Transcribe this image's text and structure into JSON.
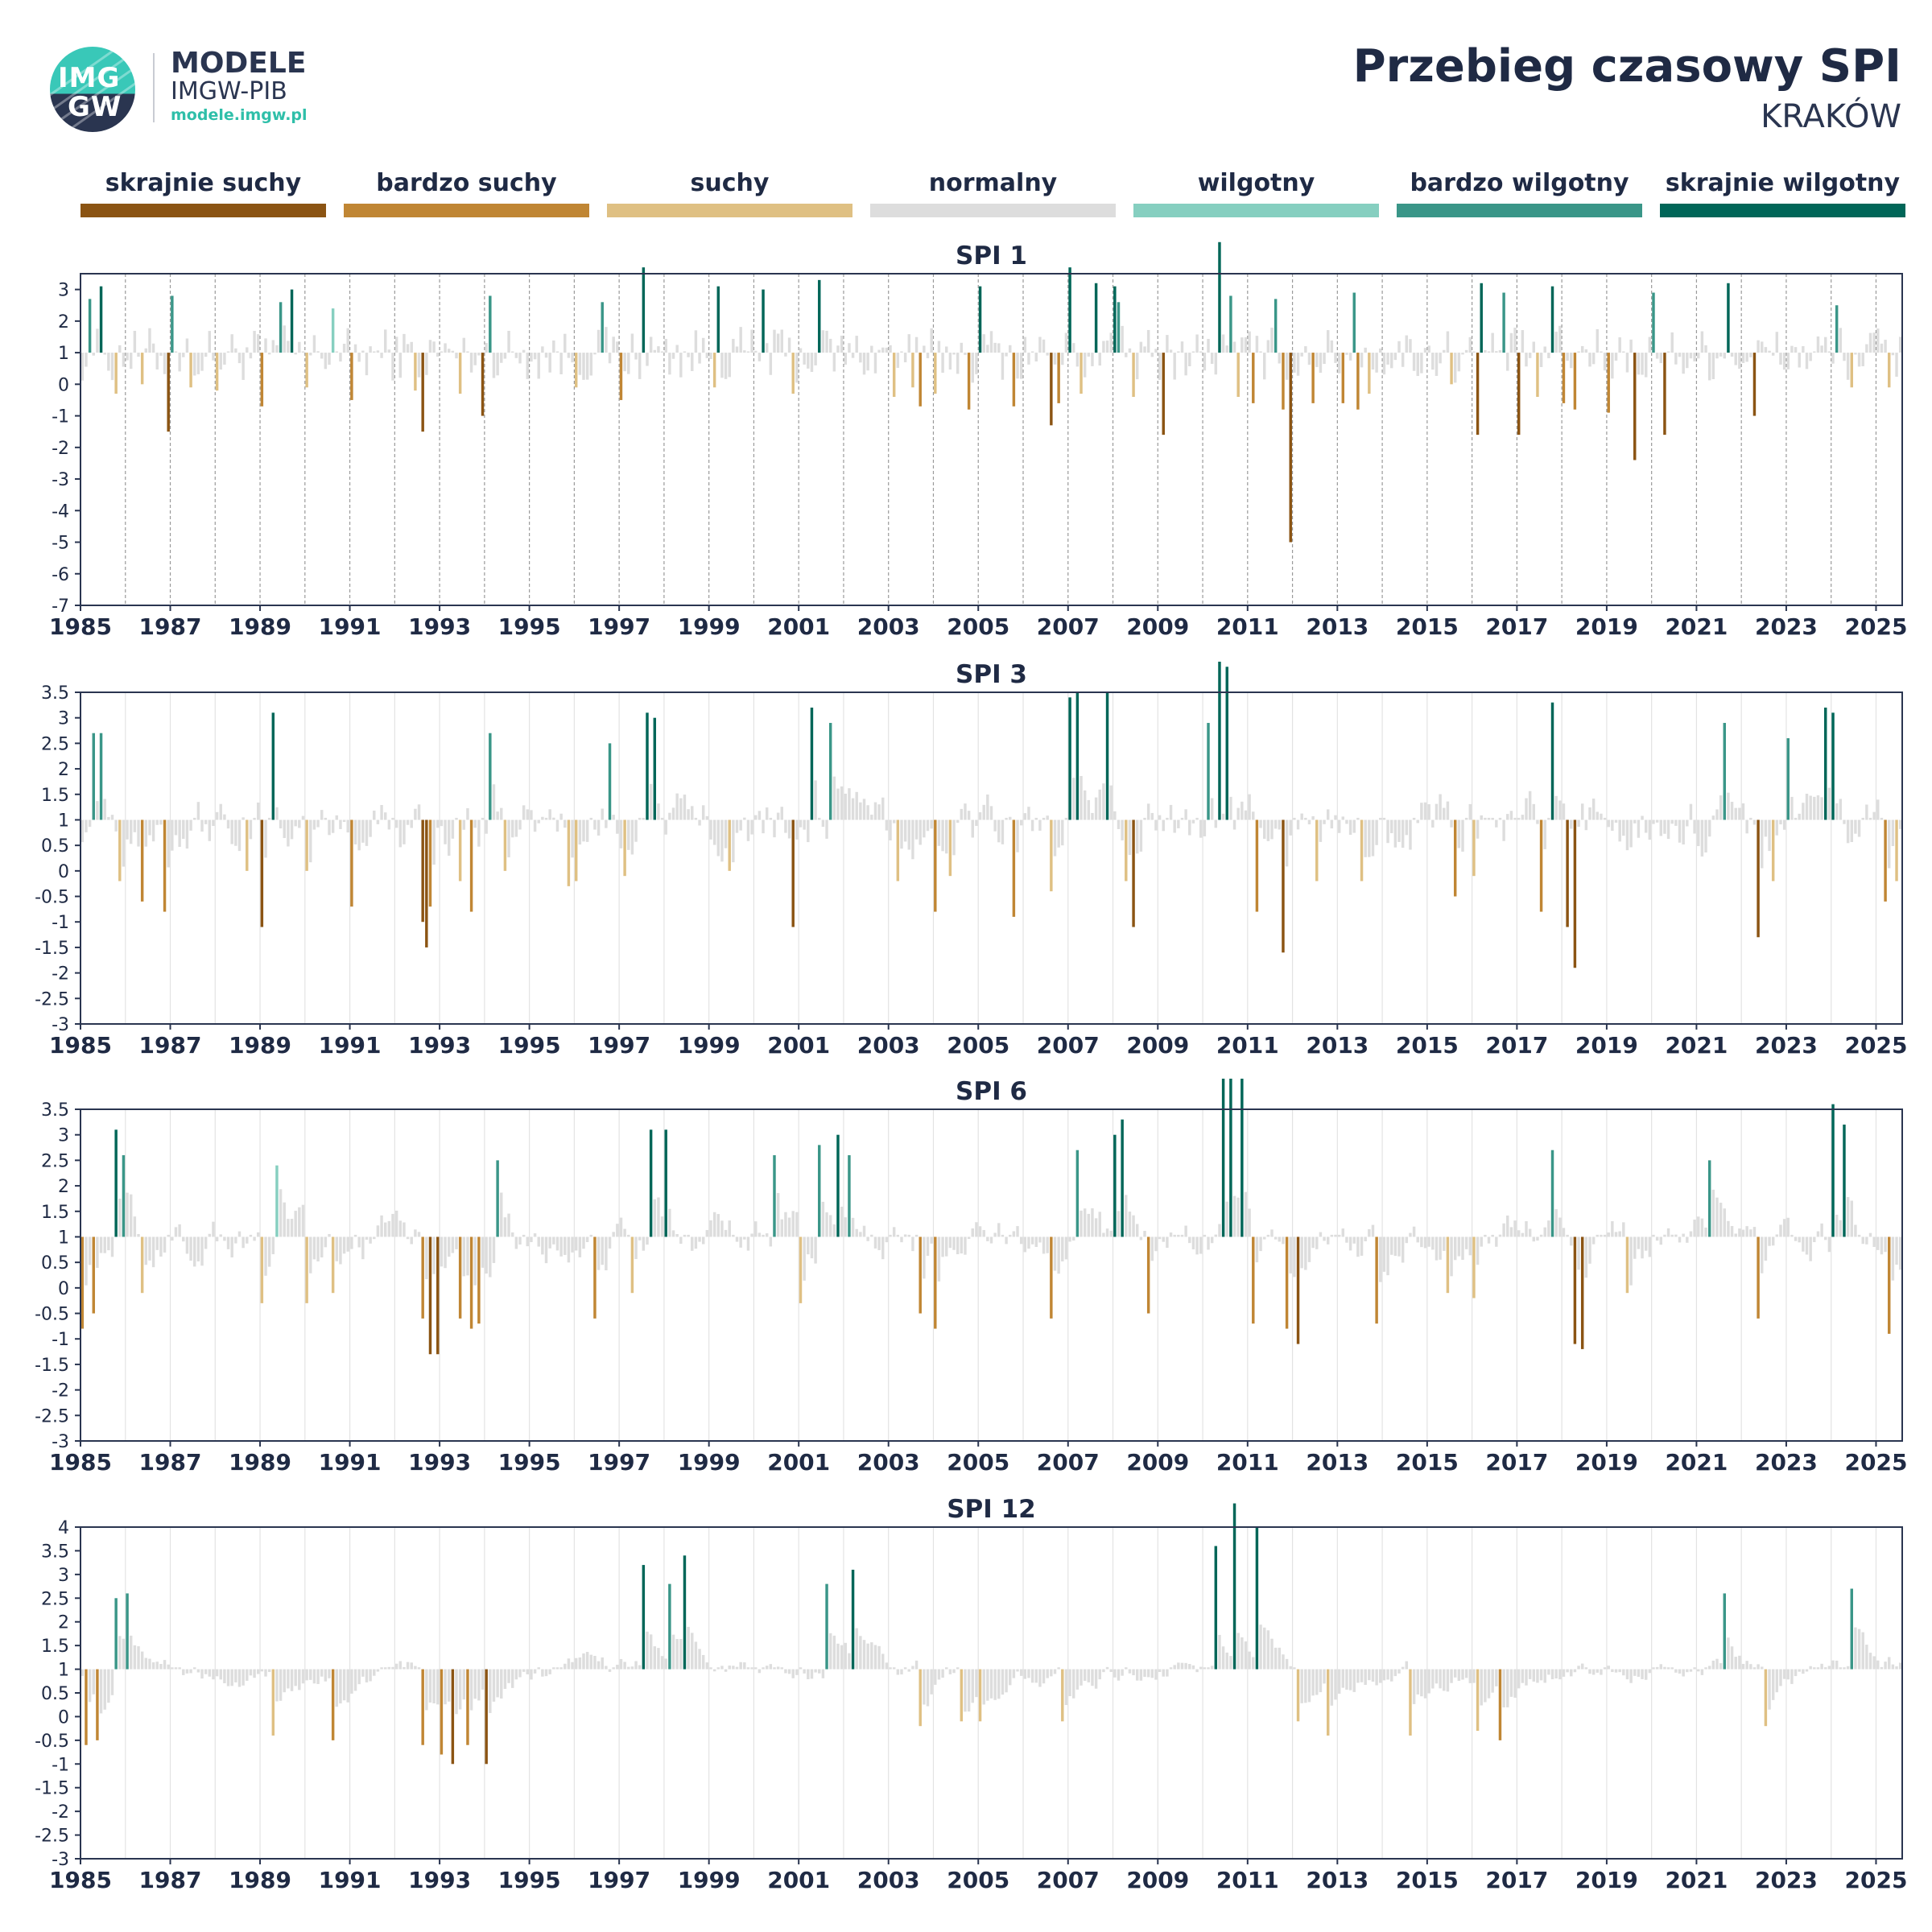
{
  "header": {
    "logo_text_top": "IMG",
    "logo_text_bottom": "GW",
    "brand_line1": "MODELE",
    "brand_line2": "IMGW-PIB",
    "brand_url": "modele.imgw.pl",
    "title": "Przebieg czasowy SPI",
    "subtitle": "KRAKÓW"
  },
  "legend": [
    {
      "label": "skrajnie suchy",
      "color": "#8B5413"
    },
    {
      "label": "bardzo suchy",
      "color": "#C08634"
    },
    {
      "label": "suchy",
      "color": "#DFC083"
    },
    {
      "label": "normalny",
      "color": "#DDDDDD"
    },
    {
      "label": "wilgotny",
      "color": "#86CFC0"
    },
    {
      "label": "bardzo wilgotny",
      "color": "#3A9688"
    },
    {
      "label": "skrajnie wilgotny",
      "color": "#006658"
    }
  ],
  "chart_data": [
    {
      "type": "bar",
      "title": "SPI 1",
      "x_start": "1985-01",
      "x_end": "2025-07",
      "baseline": 1,
      "ylim": [
        -7,
        3.5
      ],
      "yticks": [
        "3",
        "2",
        "1",
        "0",
        "-1",
        "-2",
        "-3",
        "-4",
        "-5",
        "-6",
        "-7"
      ],
      "xticks": [
        "1985",
        "1987",
        "1989",
        "1991",
        "1993",
        "1995",
        "1997",
        "1999",
        "2001",
        "2003",
        "2005",
        "2007",
        "2009",
        "2011",
        "2013",
        "2015",
        "2017",
        "2019",
        "2021",
        "2023",
        "2025"
      ],
      "gridlines": "dashed-yearly",
      "events": [
        {
          "t": "1985-03",
          "v": 1.7
        },
        {
          "t": "1985-06",
          "v": 2.1
        },
        {
          "t": "1985-10",
          "v": -1.3
        },
        {
          "t": "1986-05",
          "v": -1.0
        },
        {
          "t": "1986-12",
          "v": -2.5
        },
        {
          "t": "1987-01",
          "v": 1.8
        },
        {
          "t": "1987-06",
          "v": -1.1
        },
        {
          "t": "1988-01",
          "v": -1.2
        },
        {
          "t": "1989-01",
          "v": -1.7
        },
        {
          "t": "1989-06",
          "v": 1.6
        },
        {
          "t": "1989-09",
          "v": 2.0
        },
        {
          "t": "1990-01",
          "v": -1.1
        },
        {
          "t": "1990-08",
          "v": 1.4
        },
        {
          "t": "1991-01",
          "v": -1.5
        },
        {
          "t": "1992-06",
          "v": -1.2
        },
        {
          "t": "1992-08",
          "v": -2.5
        },
        {
          "t": "1993-06",
          "v": -1.3
        },
        {
          "t": "1993-12",
          "v": -2.0
        },
        {
          "t": "1994-02",
          "v": 1.8
        },
        {
          "t": "1996-01",
          "v": -1.1
        },
        {
          "t": "1996-08",
          "v": 1.6
        },
        {
          "t": "1997-01",
          "v": -1.5
        },
        {
          "t": "1997-07",
          "v": 2.7
        },
        {
          "t": "1999-02",
          "v": -1.1
        },
        {
          "t": "1999-03",
          "v": 2.1
        },
        {
          "t": "2000-03",
          "v": 2.0
        },
        {
          "t": "2000-11",
          "v": -1.3
        },
        {
          "t": "2001-06",
          "v": 2.3
        },
        {
          "t": "2003-02",
          "v": -1.4
        },
        {
          "t": "2003-07",
          "v": -1.1
        },
        {
          "t": "2003-09",
          "v": -1.7
        },
        {
          "t": "2004-01",
          "v": -1.3
        },
        {
          "t": "2004-10",
          "v": -1.8
        },
        {
          "t": "2005-01",
          "v": 2.1
        },
        {
          "t": "2005-10",
          "v": -1.7
        },
        {
          "t": "2006-08",
          "v": -2.3
        },
        {
          "t": "2006-10",
          "v": -1.6
        },
        {
          "t": "2007-01",
          "v": 2.7
        },
        {
          "t": "2007-04",
          "v": -1.3
        },
        {
          "t": "2007-08",
          "v": 2.2
        },
        {
          "t": "2008-01",
          "v": 2.1
        },
        {
          "t": "2008-02",
          "v": 1.6
        },
        {
          "t": "2008-06",
          "v": -1.4
        },
        {
          "t": "2009-02",
          "v": -2.6
        },
        {
          "t": "2010-05",
          "v": 3.5
        },
        {
          "t": "2010-08",
          "v": 1.8
        },
        {
          "t": "2010-10",
          "v": -1.4
        },
        {
          "t": "2011-02",
          "v": -1.6
        },
        {
          "t": "2011-08",
          "v": 1.7
        },
        {
          "t": "2011-10",
          "v": -1.8
        },
        {
          "t": "2011-12",
          "v": -6.0
        },
        {
          "t": "2012-06",
          "v": -1.6
        },
        {
          "t": "2013-02",
          "v": -1.6
        },
        {
          "t": "2013-05",
          "v": 1.9
        },
        {
          "t": "2013-06",
          "v": -1.8
        },
        {
          "t": "2013-09",
          "v": -1.3
        },
        {
          "t": "2015-07",
          "v": -1.0
        },
        {
          "t": "2016-02",
          "v": -2.6
        },
        {
          "t": "2016-03",
          "v": 2.2
        },
        {
          "t": "2016-09",
          "v": 1.9
        },
        {
          "t": "2017-01",
          "v": -2.6
        },
        {
          "t": "2017-06",
          "v": -1.4
        },
        {
          "t": "2017-10",
          "v": 2.1
        },
        {
          "t": "2018-01",
          "v": -1.6
        },
        {
          "t": "2018-04",
          "v": -1.8
        },
        {
          "t": "2019-01",
          "v": -1.9
        },
        {
          "t": "2019-08",
          "v": -3.4
        },
        {
          "t": "2020-01",
          "v": 1.9
        },
        {
          "t": "2020-04",
          "v": -2.6
        },
        {
          "t": "2021-09",
          "v": 2.2
        },
        {
          "t": "2022-04",
          "v": -2.0
        },
        {
          "t": "2024-02",
          "v": 1.5
        },
        {
          "t": "2024-06",
          "v": -1.1
        },
        {
          "t": "2025-04",
          "v": -1.1
        }
      ]
    },
    {
      "type": "bar",
      "title": "SPI 3",
      "x_start": "1985-01",
      "x_end": "2025-07",
      "baseline": 1,
      "ylim": [
        -3,
        3.5
      ],
      "yticks": [
        "3.5",
        "3",
        "2.5",
        "2",
        "1.5",
        "1",
        "0.5",
        "0",
        "-0.5",
        "-1",
        "-1.5",
        "-2",
        "-2.5",
        "-3"
      ],
      "xticks": [
        "1985",
        "1987",
        "1989",
        "1991",
        "1993",
        "1995",
        "1997",
        "1999",
        "2001",
        "2003",
        "2005",
        "2007",
        "2009",
        "2011",
        "2013",
        "2015",
        "2017",
        "2019",
        "2021",
        "2023",
        "2025"
      ],
      "gridlines": "solid-yearly",
      "events": [
        {
          "t": "1985-04",
          "v": 1.7
        },
        {
          "t": "1985-06",
          "v": 1.7
        },
        {
          "t": "1985-11",
          "v": -1.2
        },
        {
          "t": "1986-05",
          "v": -1.6
        },
        {
          "t": "1986-11",
          "v": -1.8
        },
        {
          "t": "1988-09",
          "v": -1.0
        },
        {
          "t": "1989-01",
          "v": -2.1
        },
        {
          "t": "1989-04",
          "v": 2.1
        },
        {
          "t": "1990-01",
          "v": -1.0
        },
        {
          "t": "1991-01",
          "v": -1.7
        },
        {
          "t": "1992-08",
          "v": -2.0
        },
        {
          "t": "1992-09",
          "v": -2.5
        },
        {
          "t": "1992-10",
          "v": -1.7
        },
        {
          "t": "1993-06",
          "v": -1.2
        },
        {
          "t": "1993-09",
          "v": -1.8
        },
        {
          "t": "1994-02",
          "v": 1.7
        },
        {
          "t": "1994-06",
          "v": -1.0
        },
        {
          "t": "1995-11",
          "v": -1.3
        },
        {
          "t": "1996-01",
          "v": -1.2
        },
        {
          "t": "1996-10",
          "v": 1.5
        },
        {
          "t": "1997-02",
          "v": -1.1
        },
        {
          "t": "1997-08",
          "v": 2.1
        },
        {
          "t": "1997-10",
          "v": 2.0
        },
        {
          "t": "1999-06",
          "v": -1.0
        },
        {
          "t": "2000-11",
          "v": -2.1
        },
        {
          "t": "2001-04",
          "v": 2.2
        },
        {
          "t": "2001-09",
          "v": 1.9
        },
        {
          "t": "2003-03",
          "v": -1.2
        },
        {
          "t": "2004-01",
          "v": -1.8
        },
        {
          "t": "2004-05",
          "v": -1.1
        },
        {
          "t": "2005-10",
          "v": -1.9
        },
        {
          "t": "2006-08",
          "v": -1.4
        },
        {
          "t": "2007-01",
          "v": 2.4
        },
        {
          "t": "2007-03",
          "v": 2.5
        },
        {
          "t": "2007-11",
          "v": 2.5
        },
        {
          "t": "2008-04",
          "v": -1.2
        },
        {
          "t": "2008-06",
          "v": -2.1
        },
        {
          "t": "2010-02",
          "v": 1.9
        },
        {
          "t": "2010-05",
          "v": 3.1
        },
        {
          "t": "2010-07",
          "v": 3.0
        },
        {
          "t": "2011-03",
          "v": -1.8
        },
        {
          "t": "2011-10",
          "v": -2.6
        },
        {
          "t": "2012-07",
          "v": -1.2
        },
        {
          "t": "2013-07",
          "v": -1.2
        },
        {
          "t": "2015-08",
          "v": -1.5
        },
        {
          "t": "2016-01",
          "v": -1.1
        },
        {
          "t": "2017-07",
          "v": -1.8
        },
        {
          "t": "2017-10",
          "v": 2.3
        },
        {
          "t": "2018-02",
          "v": -2.1
        },
        {
          "t": "2018-04",
          "v": -2.9
        },
        {
          "t": "2021-08",
          "v": 1.9
        },
        {
          "t": "2022-05",
          "v": -2.3
        },
        {
          "t": "2022-09",
          "v": -1.2
        },
        {
          "t": "2023-01",
          "v": 1.6
        },
        {
          "t": "2023-11",
          "v": 2.2
        },
        {
          "t": "2024-01",
          "v": 2.1
        },
        {
          "t": "2025-03",
          "v": -1.6
        },
        {
          "t": "2025-06",
          "v": -1.2
        }
      ]
    },
    {
      "type": "bar",
      "title": "SPI 6",
      "x_start": "1985-01",
      "x_end": "2025-07",
      "baseline": 1,
      "ylim": [
        -3,
        3.5
      ],
      "yticks": [
        "3.5",
        "3",
        "2.5",
        "2",
        "1.5",
        "1",
        "0.5",
        "0",
        "-0.5",
        "-1",
        "-1.5",
        "-2",
        "-2.5",
        "-3"
      ],
      "xticks": [
        "1985",
        "1987",
        "1989",
        "1991",
        "1993",
        "1995",
        "1997",
        "1999",
        "2001",
        "2003",
        "2005",
        "2007",
        "2009",
        "2011",
        "2013",
        "2015",
        "2017",
        "2019",
        "2021",
        "2023",
        "2025"
      ],
      "gridlines": "solid-yearly",
      "events": [
        {
          "t": "1985-01",
          "v": -1.8
        },
        {
          "t": "1985-04",
          "v": -1.5
        },
        {
          "t": "1985-10",
          "v": 2.1
        },
        {
          "t": "1985-12",
          "v": 1.6
        },
        {
          "t": "1986-05",
          "v": -1.1
        },
        {
          "t": "1989-01",
          "v": -1.3
        },
        {
          "t": "1989-05",
          "v": 1.4
        },
        {
          "t": "1990-01",
          "v": -1.3
        },
        {
          "t": "1990-08",
          "v": -1.1
        },
        {
          "t": "1992-08",
          "v": -1.6
        },
        {
          "t": "1992-10",
          "v": -2.3
        },
        {
          "t": "1992-12",
          "v": -2.3
        },
        {
          "t": "1993-06",
          "v": -1.6
        },
        {
          "t": "1993-09",
          "v": -1.8
        },
        {
          "t": "1993-11",
          "v": -1.7
        },
        {
          "t": "1994-04",
          "v": 1.5
        },
        {
          "t": "1996-06",
          "v": -1.6
        },
        {
          "t": "1997-04",
          "v": -1.1
        },
        {
          "t": "1997-09",
          "v": 2.1
        },
        {
          "t": "1998-01",
          "v": 2.1
        },
        {
          "t": "2000-06",
          "v": 1.6
        },
        {
          "t": "2001-01",
          "v": -1.3
        },
        {
          "t": "2001-06",
          "v": 1.8
        },
        {
          "t": "2001-11",
          "v": 2.0
        },
        {
          "t": "2002-02",
          "v": 1.6
        },
        {
          "t": "2003-09",
          "v": -1.5
        },
        {
          "t": "2004-01",
          "v": -1.8
        },
        {
          "t": "2006-08",
          "v": -1.6
        },
        {
          "t": "2007-03",
          "v": 1.7
        },
        {
          "t": "2008-01",
          "v": 2.0
        },
        {
          "t": "2008-03",
          "v": 2.3
        },
        {
          "t": "2008-10",
          "v": -1.5
        },
        {
          "t": "2010-06",
          "v": 3.1
        },
        {
          "t": "2010-08",
          "v": 3.1
        },
        {
          "t": "2010-11",
          "v": 3.1
        },
        {
          "t": "2011-02",
          "v": -1.7
        },
        {
          "t": "2011-11",
          "v": -1.8
        },
        {
          "t": "2012-02",
          "v": -2.1
        },
        {
          "t": "2013-11",
          "v": -1.7
        },
        {
          "t": "2015-06",
          "v": -1.1
        },
        {
          "t": "2016-01",
          "v": -1.2
        },
        {
          "t": "2017-10",
          "v": 1.7
        },
        {
          "t": "2018-04",
          "v": -2.1
        },
        {
          "t": "2018-06",
          "v": -2.2
        },
        {
          "t": "2019-06",
          "v": -1.1
        },
        {
          "t": "2021-04",
          "v": 1.5
        },
        {
          "t": "2022-05",
          "v": -1.6
        },
        {
          "t": "2024-01",
          "v": 2.6
        },
        {
          "t": "2024-04",
          "v": 2.2
        },
        {
          "t": "2025-04",
          "v": -1.9
        }
      ]
    },
    {
      "type": "bar",
      "title": "SPI 12",
      "x_start": "1985-01",
      "x_end": "2025-07",
      "baseline": 1,
      "ylim": [
        -3,
        4
      ],
      "yticks": [
        "4",
        "3.5",
        "3",
        "2.5",
        "2",
        "1.5",
        "1",
        "0.5",
        "0",
        "-0.5",
        "-1",
        "-1.5",
        "-2",
        "-2.5",
        "-3"
      ],
      "xticks": [
        "1985",
        "1987",
        "1989",
        "1991",
        "1993",
        "1995",
        "1997",
        "1999",
        "2001",
        "2003",
        "2005",
        "2007",
        "2009",
        "2011",
        "2013",
        "2015",
        "2017",
        "2019",
        "2021",
        "2023",
        "2025"
      ],
      "gridlines": "solid-yearly",
      "events": [
        {
          "t": "1985-02",
          "v": -1.6
        },
        {
          "t": "1985-05",
          "v": -1.5
        },
        {
          "t": "1985-10",
          "v": 1.5
        },
        {
          "t": "1986-01",
          "v": 1.6
        },
        {
          "t": "1989-04",
          "v": -1.4
        },
        {
          "t": "1990-08",
          "v": -1.5
        },
        {
          "t": "1992-08",
          "v": -1.6
        },
        {
          "t": "1993-01",
          "v": -1.8
        },
        {
          "t": "1993-04",
          "v": -2.0
        },
        {
          "t": "1993-08",
          "v": -1.6
        },
        {
          "t": "1994-01",
          "v": -2.0
        },
        {
          "t": "1997-07",
          "v": 2.2
        },
        {
          "t": "1998-02",
          "v": 1.8
        },
        {
          "t": "1998-06",
          "v": 2.4
        },
        {
          "t": "2001-08",
          "v": 1.8
        },
        {
          "t": "2002-03",
          "v": 2.1
        },
        {
          "t": "2003-09",
          "v": -1.2
        },
        {
          "t": "2004-08",
          "v": -1.1
        },
        {
          "t": "2005-01",
          "v": -1.1
        },
        {
          "t": "2006-11",
          "v": -1.1
        },
        {
          "t": "2010-04",
          "v": 2.6
        },
        {
          "t": "2010-09",
          "v": 3.5
        },
        {
          "t": "2011-03",
          "v": 3.0
        },
        {
          "t": "2012-02",
          "v": -1.1
        },
        {
          "t": "2012-10",
          "v": -1.4
        },
        {
          "t": "2014-08",
          "v": -1.4
        },
        {
          "t": "2016-02",
          "v": -1.3
        },
        {
          "t": "2016-08",
          "v": -1.5
        },
        {
          "t": "2021-08",
          "v": 1.6
        },
        {
          "t": "2022-07",
          "v": -1.2
        },
        {
          "t": "2024-06",
          "v": 1.7
        }
      ]
    }
  ]
}
